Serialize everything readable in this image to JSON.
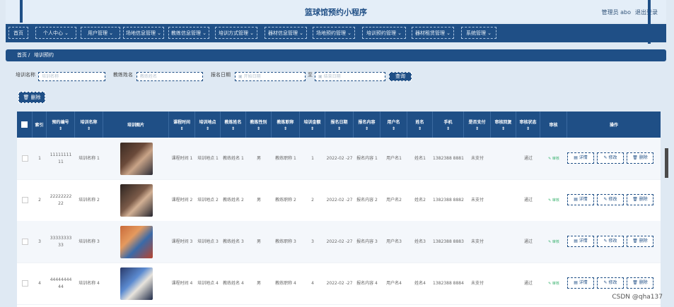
{
  "header": {
    "title": "篮球馆预约小程序",
    "admin": "管理员 abo",
    "logout": "退出登录"
  },
  "nav": [
    "首页",
    "个人中心",
    "用户管理",
    "场地信息管理",
    "教练信息管理",
    "培训方式管理",
    "器材信息管理",
    "场地预约管理",
    "培训预约管理",
    "器材租赁管理",
    "系统管理"
  ],
  "breadcrumb": {
    "home": "首页",
    "sep": "/",
    "current": "培训预约"
  },
  "search": {
    "name_label": "培训名称",
    "name_placeholder": "培训名称",
    "coach_label": "教练姓名",
    "coach_placeholder": "教练姓名",
    "date_label": "报名日期",
    "date_start_placeholder": "开始日期",
    "date_sep": "至",
    "date_end_placeholder": "结束日期",
    "search_btn": "查询",
    "delete_btn": "删除"
  },
  "columns": [
    "索引",
    "预约编号",
    "培训名称",
    "培训图片",
    "课程时间",
    "培训地点",
    "教练姓名",
    "教练性别",
    "教练职称",
    "培训金额",
    "报名日期",
    "报名内容",
    "用户名",
    "姓名",
    "手机",
    "是否支付",
    "审核回复",
    "审核状态",
    "审核",
    "操作"
  ],
  "rows": [
    {
      "index": "1",
      "no": "11111111 11",
      "name": "培训名称 1",
      "time": "课程时间 1",
      "place": "培训地点 1",
      "coach": "教练姓名 1",
      "gender": "男",
      "title": "教练职称 1",
      "amount": "1",
      "date": "2022-02 -27",
      "content": "报名内容 1",
      "user": "用户名1",
      "realname": "姓名1",
      "phone": "1382388 8881",
      "pay": "未支付",
      "reply": "",
      "status": "通过",
      "audit": "审核"
    },
    {
      "index": "2",
      "no": "22222222 22",
      "name": "培训名称 2",
      "time": "课程时间 2",
      "place": "培训地点 2",
      "coach": "教练姓名 2",
      "gender": "男",
      "title": "教练职称 2",
      "amount": "2",
      "date": "2022-02 -27",
      "content": "报名内容 2",
      "user": "用户名2",
      "realname": "姓名2",
      "phone": "1382388 8882",
      "pay": "未支付",
      "reply": "",
      "status": "通过",
      "audit": "审核"
    },
    {
      "index": "3",
      "no": "33333333 33",
      "name": "培训名称 3",
      "time": "课程时间 3",
      "place": "培训地点 3",
      "coach": "教练姓名 3",
      "gender": "男",
      "title": "教练职称 3",
      "amount": "3",
      "date": "2022-02 -27",
      "content": "报名内容 3",
      "user": "用户名3",
      "realname": "姓名3",
      "phone": "1382388 8883",
      "pay": "未支付",
      "reply": "",
      "status": "通过",
      "audit": "审核"
    },
    {
      "index": "4",
      "no": "44444444 44",
      "name": "培训名称 4",
      "time": "课程时间 4",
      "place": "培训地点 4",
      "coach": "教练姓名 4",
      "gender": "男",
      "title": "教练职称 4",
      "amount": "4",
      "date": "2022-02 -27",
      "content": "报名内容 4",
      "user": "用户名4",
      "realname": "姓名4",
      "phone": "1382388 8884",
      "pay": "未支付",
      "reply": "",
      "status": "通过",
      "audit": "审核"
    }
  ],
  "actions": {
    "detail": "详情",
    "edit": "修改",
    "delete": "删除"
  },
  "watermark": "CSDN @qha137",
  "colors": {
    "primary": "#1f4f86",
    "success": "#3cb371"
  }
}
